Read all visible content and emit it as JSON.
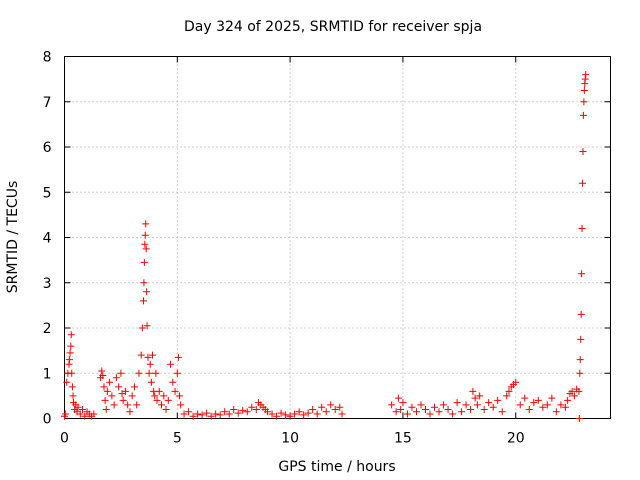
{
  "chart_data": {
    "type": "scatter",
    "title": "Day 324 of 2025, SRMTID for receiver spja",
    "xlabel": "GPS time / hours",
    "ylabel": "SRMTID / TECUs",
    "xlim": [
      0,
      24.2
    ],
    "ylim": [
      0,
      8
    ],
    "x_ticks": [
      0,
      5,
      10,
      15,
      20
    ],
    "y_ticks": [
      0,
      1,
      2,
      3,
      4,
      5,
      6,
      7,
      8
    ],
    "grid": true,
    "marker": "+",
    "marker_color": "#ff0000",
    "grid_color": "#a0a0a0",
    "series": [
      {
        "name": "SRMTID",
        "x": [
          0.0,
          0.05,
          0.1,
          0.15,
          0.2,
          0.22,
          0.25,
          0.28,
          0.3,
          0.32,
          0.35,
          0.38,
          0.4,
          0.45,
          0.5,
          0.55,
          0.6,
          0.7,
          0.8,
          0.9,
          1.0,
          1.1,
          1.2,
          1.3,
          1.6,
          1.65,
          1.7,
          1.75,
          1.8,
          1.85,
          1.9,
          2.0,
          2.1,
          2.2,
          2.3,
          2.4,
          2.5,
          2.55,
          2.6,
          2.7,
          2.8,
          2.9,
          3.0,
          3.1,
          3.2,
          3.3,
          3.4,
          3.45,
          3.5,
          3.52,
          3.54,
          3.56,
          3.58,
          3.6,
          3.62,
          3.64,
          3.66,
          3.7,
          3.75,
          3.8,
          3.85,
          3.9,
          3.95,
          4.0,
          4.05,
          4.1,
          4.2,
          4.3,
          4.4,
          4.5,
          4.6,
          4.7,
          4.8,
          4.9,
          5.0,
          5.05,
          5.1,
          5.15,
          5.3,
          5.5,
          5.7,
          5.9,
          6.1,
          6.3,
          6.5,
          6.7,
          6.9,
          7.1,
          7.3,
          7.5,
          7.7,
          7.9,
          8.1,
          8.3,
          8.5,
          8.6,
          8.7,
          8.8,
          8.9,
          9.0,
          9.2,
          9.4,
          9.6,
          9.8,
          10.0,
          10.2,
          10.4,
          10.6,
          10.8,
          11.0,
          11.2,
          11.4,
          11.6,
          11.8,
          12.0,
          12.2,
          12.3,
          14.5,
          14.7,
          14.8,
          14.9,
          15.0,
          15.2,
          15.4,
          15.6,
          15.8,
          16.0,
          16.2,
          16.4,
          16.6,
          16.8,
          17.0,
          17.2,
          17.4,
          17.6,
          17.8,
          18.0,
          18.1,
          18.2,
          18.3,
          18.4,
          18.6,
          18.8,
          19.0,
          19.2,
          19.4,
          19.6,
          19.7,
          19.8,
          19.9,
          20.0,
          20.2,
          20.4,
          20.6,
          20.8,
          21.0,
          21.2,
          21.4,
          21.6,
          21.8,
          22.0,
          22.2,
          22.3,
          22.4,
          22.5,
          22.6,
          22.7,
          22.8,
          22.82,
          22.84,
          22.86,
          22.88,
          22.9,
          22.92,
          22.94,
          22.96,
          22.98,
          23.0,
          23.02,
          23.04,
          23.06,
          23.08,
          23.1
        ],
        "y": [
          0.05,
          0.1,
          0.8,
          1.0,
          1.2,
          1.3,
          1.45,
          1.6,
          1.85,
          1.0,
          0.7,
          0.5,
          0.35,
          0.2,
          0.3,
          0.15,
          0.25,
          0.1,
          0.2,
          0.05,
          0.15,
          0.1,
          0.05,
          0.1,
          0.9,
          1.05,
          0.95,
          0.7,
          0.4,
          0.2,
          0.6,
          0.8,
          0.5,
          0.3,
          0.9,
          0.7,
          1.0,
          0.55,
          0.4,
          0.6,
          0.3,
          0.15,
          0.5,
          0.7,
          0.3,
          1.0,
          1.4,
          2.0,
          2.6,
          3.0,
          3.45,
          3.85,
          4.05,
          4.3,
          3.75,
          2.8,
          2.05,
          1.35,
          1.0,
          1.2,
          0.8,
          1.4,
          0.6,
          0.5,
          1.0,
          0.4,
          0.6,
          0.3,
          0.5,
          0.2,
          0.4,
          1.2,
          0.8,
          0.6,
          1.0,
          1.35,
          0.5,
          0.3,
          0.1,
          0.15,
          0.05,
          0.1,
          0.08,
          0.12,
          0.05,
          0.1,
          0.08,
          0.15,
          0.1,
          0.2,
          0.12,
          0.18,
          0.15,
          0.25,
          0.2,
          0.35,
          0.3,
          0.25,
          0.2,
          0.15,
          0.1,
          0.05,
          0.12,
          0.08,
          0.05,
          0.1,
          0.15,
          0.08,
          0.12,
          0.2,
          0.1,
          0.25,
          0.15,
          0.3,
          0.2,
          0.25,
          0.1,
          0.3,
          0.15,
          0.45,
          0.2,
          0.35,
          0.1,
          0.25,
          0.15,
          0.3,
          0.2,
          0.1,
          0.25,
          0.15,
          0.3,
          0.2,
          0.1,
          0.35,
          0.15,
          0.3,
          0.2,
          0.6,
          0.45,
          0.3,
          0.5,
          0.2,
          0.35,
          0.25,
          0.4,
          0.15,
          0.5,
          0.6,
          0.7,
          0.75,
          0.8,
          0.3,
          0.45,
          0.2,
          0.35,
          0.4,
          0.25,
          0.3,
          0.45,
          0.15,
          0.3,
          0.25,
          0.4,
          0.55,
          0.6,
          0.5,
          0.65,
          0.6,
          0.0,
          1.0,
          1.3,
          1.75,
          2.3,
          3.2,
          4.2,
          5.2,
          5.9,
          6.7,
          7.0,
          7.25,
          7.4,
          7.5,
          7.6
        ]
      }
    ]
  }
}
